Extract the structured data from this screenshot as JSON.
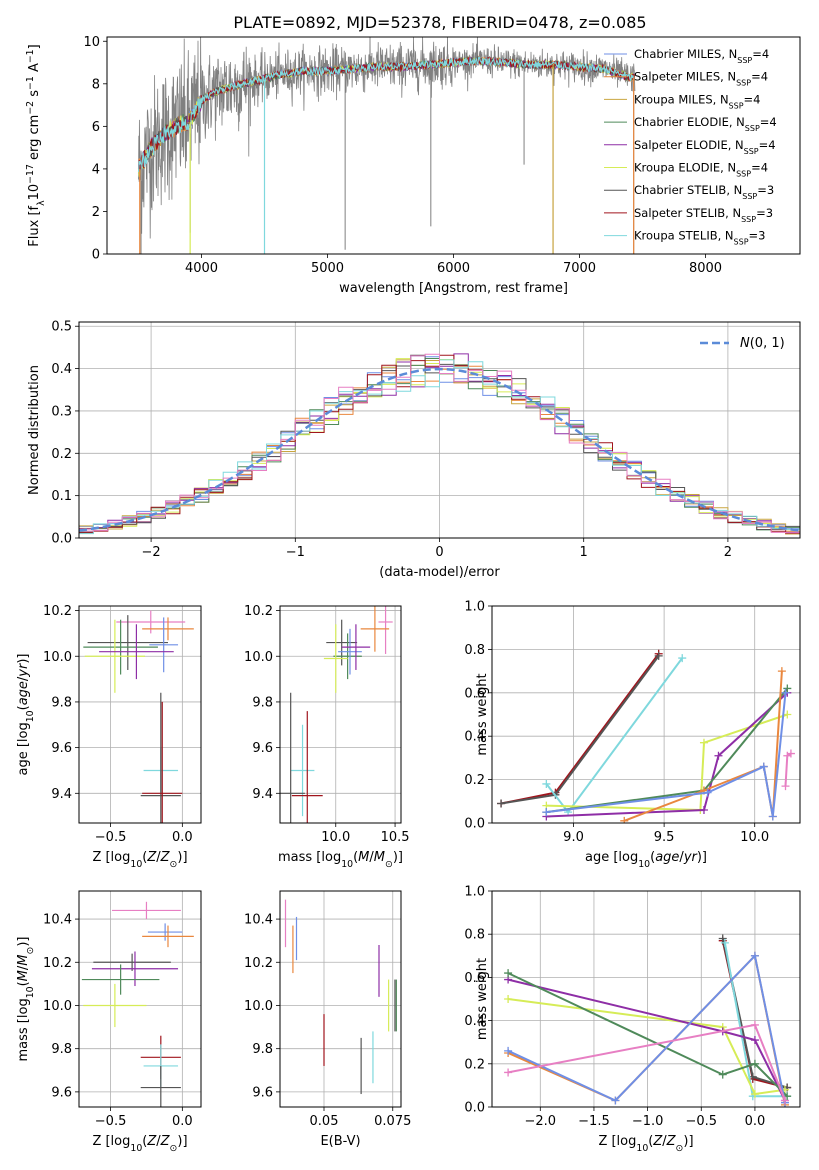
{
  "figure_title": "PLATE=0892, MJD=52378, FIBERID=0478, z=0.085",
  "colors": {
    "Chabrier MILES": "#6f8fe6",
    "Salpeter MILES": "#e9873e",
    "Kroupa MILES": "#c9a641",
    "Chabrier ELODIE": "#4f8a5a",
    "Salpeter ELODIE": "#8e2ea6",
    "Kroupa ELODIE": "#d6ec57",
    "Chabrier STELIB": "#555555",
    "Salpeter STELIB": "#a0151d",
    "Kroupa STELIB": "#7fd8dd",
    "pink": "#e77fc3",
    "data_gray": "#808080",
    "gauss": "#5b8bd8"
  },
  "chart_data": [
    {
      "id": "spectrum",
      "type": "line",
      "title": "PLATE=0892, MJD=52378, FIBERID=0478, z=0.085",
      "xlabel": "wavelength [Angstrom, rest frame]",
      "ylabel": "Flux [f_λ 10^-17 erg cm^-2 s^-1 A^-1]",
      "xlim": [
        3250,
        8750
      ],
      "ylim": [
        0,
        10.2
      ],
      "xticks": [
        4000,
        5000,
        6000,
        7000,
        8000
      ],
      "yticks": [
        0,
        2,
        4,
        6,
        8,
        10
      ],
      "grid": false,
      "legend_position": "upper-right",
      "legend": [
        {
          "name": "Chabrier MILES, N_SSP=4",
          "label_main": "Chabrier MILES, N",
          "label_sub": "SSP",
          "label_tail": "=4",
          "color": "#6f8fe6"
        },
        {
          "name": "Salpeter MILES, N_SSP=4",
          "label_main": "Salpeter MILES, N",
          "label_sub": "SSP",
          "label_tail": "=4",
          "color": "#e9873e"
        },
        {
          "name": "Kroupa MILES, N_SSP=4",
          "label_main": "Kroupa MILES, N",
          "label_sub": "SSP",
          "label_tail": "=4",
          "color": "#c9a641"
        },
        {
          "name": "Chabrier ELODIE, N_SSP=4",
          "label_main": "Chabrier ELODIE, N",
          "label_sub": "SSP",
          "label_tail": "=4",
          "color": "#4f8a5a"
        },
        {
          "name": "Salpeter ELODIE, N_SSP=4",
          "label_main": "Salpeter ELODIE, N",
          "label_sub": "SSP",
          "label_tail": "=4",
          "color": "#8e2ea6"
        },
        {
          "name": "Kroupa ELODIE, N_SSP=4",
          "label_main": "Kroupa ELODIE, N",
          "label_sub": "SSP",
          "label_tail": "=4",
          "color": "#d6ec57"
        },
        {
          "name": "Chabrier STELIB, N_SSP=3",
          "label_main": "Chabrier STELIB, N",
          "label_sub": "SSP",
          "label_tail": "=3",
          "color": "#555555"
        },
        {
          "name": "Salpeter STELIB, N_SSP=3",
          "label_main": "Salpeter STELIB, N",
          "label_sub": "SSP",
          "label_tail": "=3",
          "color": "#a0151d"
        },
        {
          "name": "Kroupa STELIB, N_SSP=3",
          "label_main": "Kroupa STELIB, N",
          "label_sub": "SSP",
          "label_tail": "=3",
          "color": "#7fd8dd"
        }
      ],
      "continuum": {
        "x": [
          3500,
          3600,
          3700,
          3800,
          3900,
          4000,
          4100,
          4200,
          4400,
          4600,
          4800,
          5000,
          5200,
          5400,
          5600,
          5800,
          6000,
          6200,
          6400,
          6600,
          6800,
          7000,
          7200,
          7300,
          7400
        ],
        "y": [
          4.0,
          5.0,
          5.6,
          6.0,
          6.2,
          7.2,
          7.6,
          7.8,
          8.1,
          8.4,
          8.6,
          8.6,
          8.7,
          8.8,
          8.8,
          8.9,
          9.0,
          9.1,
          9.0,
          8.9,
          8.9,
          8.8,
          8.7,
          8.5,
          8.3
        ]
      },
      "data_range": [
        3500,
        7440
      ],
      "dips": [
        {
          "x": 3520,
          "y": 0
        },
        {
          "x": 3910,
          "y": 1.0
        },
        {
          "x": 4500,
          "y": 0
        },
        {
          "x": 5140,
          "y": 0.2
        },
        {
          "x": 5820,
          "y": 1.3
        },
        {
          "x": 6560,
          "y": 4.2
        },
        {
          "x": 6790,
          "y": 0
        },
        {
          "x": 7430,
          "y": 0
        }
      ]
    },
    {
      "id": "residuals",
      "type": "histogram",
      "xlabel": "(data-model)/error",
      "ylabel": "Normed distribution",
      "xlim": [
        -2.5,
        2.5
      ],
      "ylim": [
        0,
        0.51
      ],
      "xticks": [
        -2,
        -1,
        0,
        1,
        2
      ],
      "yticks": [
        0.0,
        0.1,
        0.2,
        0.3,
        0.4,
        0.5
      ],
      "grid": true,
      "bin_width": 0.1,
      "legend_position": "upper-right",
      "gauss_label": "N(0,1)"
    },
    {
      "id": "age_vs_Z",
      "type": "errorbar",
      "xlabel": "Z [log10(Z/Z_sun)]",
      "ylabel": "age [log10(age/yr)]",
      "xlim": [
        -0.72,
        0.13
      ],
      "ylim": [
        9.27,
        10.22
      ],
      "xticks": [
        -0.5,
        0.0
      ],
      "yticks": [
        9.4,
        9.6,
        9.8,
        10.0,
        10.2
      ],
      "grid": true,
      "points": [
        {
          "c": "pink",
          "x": -0.22,
          "ex": 0.24,
          "y": 10.15,
          "ey": 0.05
        },
        {
          "c": "Salpeter MILES",
          "x": -0.1,
          "ex": 0.18,
          "y": 10.12,
          "ey": 0.05
        },
        {
          "c": "Chabrier STELIB",
          "x": -0.38,
          "ex": 0.28,
          "y": 10.06,
          "ey": 0.12
        },
        {
          "c": "Chabrier ELODIE",
          "x": -0.43,
          "ex": 0.26,
          "y": 10.04,
          "ey": 0.12
        },
        {
          "c": "Chabrier MILES",
          "x": -0.13,
          "ex": 0.1,
          "y": 10.05,
          "ey": 0.12
        },
        {
          "c": "Kroupa ELODIE",
          "x": -0.47,
          "ex": 0.21,
          "y": 10.0,
          "ey": 0.16
        },
        {
          "c": "Salpeter ELODIE",
          "x": -0.32,
          "ex": 0.26,
          "y": 10.02,
          "ey": 0.12
        },
        {
          "c": "Kroupa STELIB",
          "x": -0.15,
          "ex": 0.12,
          "y": 9.5,
          "ey": 0.1
        },
        {
          "c": "Chabrier STELIB",
          "x": -0.15,
          "ex": 0.14,
          "y": 9.39,
          "ey": 0.45
        },
        {
          "c": "Salpeter STELIB",
          "x": -0.14,
          "ex": 0.14,
          "y": 9.4,
          "ey": 0.4
        }
      ]
    },
    {
      "id": "age_vs_mass",
      "type": "errorbar",
      "xlabel": "mass [log10(M/M_sun)]",
      "ylabel": "",
      "xlim": [
        9.53,
        10.55
      ],
      "ylim": [
        9.27,
        10.22
      ],
      "xticks": [
        10.0,
        10.5
      ],
      "yticks": [
        9.4,
        9.6,
        9.8,
        10.0,
        10.2
      ],
      "grid": true,
      "points": [
        {
          "c": "pink",
          "x": 10.42,
          "ex": 0.06,
          "y": 10.15,
          "ey": 0.14
        },
        {
          "c": "Salpeter MILES",
          "x": 10.33,
          "ex": 0.12,
          "y": 10.12,
          "ey": 0.1
        },
        {
          "c": "Chabrier STELIB",
          "x": 10.05,
          "ex": 0.13,
          "y": 10.06,
          "ey": 0.1
        },
        {
          "c": "Chabrier ELODIE",
          "x": 10.1,
          "ex": 0.12,
          "y": 10.0,
          "ey": 0.1
        },
        {
          "c": "Chabrier MILES",
          "x": 10.12,
          "ex": 0.1,
          "y": 10.02,
          "ey": 0.1
        },
        {
          "c": "Kroupa ELODIE",
          "x": 10.0,
          "ex": 0.1,
          "y": 9.99,
          "ey": 0.15
        },
        {
          "c": "Salpeter ELODIE",
          "x": 10.17,
          "ex": 0.12,
          "y": 10.04,
          "ey": 0.1
        },
        {
          "c": "Kroupa STELIB",
          "x": 9.72,
          "ex": 0.1,
          "y": 9.5,
          "ey": 0.2
        },
        {
          "c": "Chabrier STELIB",
          "x": 9.62,
          "ex": 0.12,
          "y": 9.4,
          "ey": 0.44
        },
        {
          "c": "Salpeter STELIB",
          "x": 9.76,
          "ex": 0.13,
          "y": 9.39,
          "ey": 0.37
        }
      ]
    },
    {
      "id": "massweight_vs_age",
      "type": "line",
      "xlabel": "age [log10(age/yr)]",
      "ylabel": "mass weight",
      "xlim": [
        8.55,
        10.25
      ],
      "ylim": [
        0,
        1.0
      ],
      "xticks": [
        9.0,
        9.5,
        10.0
      ],
      "yticks": [
        0.0,
        0.2,
        0.4,
        0.6,
        0.8,
        1.0
      ],
      "grid": true,
      "series": [
        {
          "c": "Salpeter STELIB",
          "x": [
            8.6,
            8.9,
            9.47
          ],
          "y": [
            0.09,
            0.14,
            0.78
          ]
        },
        {
          "c": "Chabrier STELIB",
          "x": [
            8.6,
            8.9,
            9.47
          ],
          "y": [
            0.09,
            0.13,
            0.77
          ]
        },
        {
          "c": "Kroupa STELIB",
          "x": [
            8.85,
            8.97,
            9.6
          ],
          "y": [
            0.18,
            0.05,
            0.76
          ]
        },
        {
          "c": "Kroupa ELODIE",
          "x": [
            8.85,
            9.7,
            9.72,
            10.18
          ],
          "y": [
            0.08,
            0.06,
            0.37,
            0.5
          ]
        },
        {
          "c": "Salpeter ELODIE",
          "x": [
            8.85,
            9.72,
            9.8,
            10.18
          ],
          "y": [
            0.03,
            0.06,
            0.31,
            0.6
          ]
        },
        {
          "c": "Chabrier ELODIE",
          "x": [
            8.85,
            9.72,
            10.18
          ],
          "y": [
            0.05,
            0.15,
            0.62
          ]
        },
        {
          "c": "Salpeter MILES",
          "x": [
            9.28,
            9.72,
            10.05,
            10.1,
            10.15
          ],
          "y": [
            0.01,
            0.15,
            0.26,
            0.03,
            0.7
          ]
        },
        {
          "c": "Chabrier MILES",
          "x": [
            8.85,
            9.74,
            10.05,
            10.1,
            10.17
          ],
          "y": [
            0.05,
            0.14,
            0.26,
            0.03,
            0.6
          ]
        },
        {
          "c": "pink",
          "x": [
            10.17,
            10.18,
            10.2
          ],
          "y": [
            0.17,
            0.31,
            0.32
          ]
        }
      ]
    },
    {
      "id": "mass_vs_Z",
      "type": "errorbar",
      "xlabel": "Z [log10(Z/Z_sun)]",
      "ylabel": "mass [log10(M/M_sun)]",
      "xlim": [
        -0.72,
        0.13
      ],
      "ylim": [
        9.53,
        10.53
      ],
      "xticks": [
        -0.5,
        0.0
      ],
      "yticks": [
        9.6,
        9.8,
        10.0,
        10.2,
        10.4
      ],
      "grid": true,
      "points": [
        {
          "c": "pink",
          "x": -0.25,
          "ex": 0.24,
          "y": 10.44,
          "ey": 0.04
        },
        {
          "c": "Chabrier MILES",
          "x": -0.12,
          "ex": 0.12,
          "y": 10.34,
          "ey": 0.04
        },
        {
          "c": "Salpeter MILES",
          "x": -0.1,
          "ex": 0.18,
          "y": 10.32,
          "ey": 0.05
        },
        {
          "c": "Chabrier STELIB",
          "x": -0.35,
          "ex": 0.27,
          "y": 10.2,
          "ey": 0.04
        },
        {
          "c": "Salpeter ELODIE",
          "x": -0.33,
          "ex": 0.3,
          "y": 10.17,
          "ey": 0.08
        },
        {
          "c": "Chabrier ELODIE",
          "x": -0.43,
          "ex": 0.27,
          "y": 10.12,
          "ey": 0.07
        },
        {
          "c": "Kroupa ELODIE",
          "x": -0.47,
          "ex": 0.22,
          "y": 10.0,
          "ey": 0.1
        },
        {
          "c": "Salpeter STELIB",
          "x": -0.15,
          "ex": 0.14,
          "y": 9.76,
          "ey": 0.1
        },
        {
          "c": "Kroupa STELIB",
          "x": -0.15,
          "ex": 0.12,
          "y": 9.72,
          "ey": 0.1
        },
        {
          "c": "Chabrier STELIB",
          "x": -0.15,
          "ex": 0.14,
          "y": 9.62,
          "ey": 0.1
        }
      ]
    },
    {
      "id": "mass_vs_EBV",
      "type": "errorbar",
      "xlabel": "E(B-V)",
      "ylabel": "",
      "xlim": [
        0.034,
        0.078
      ],
      "ylim": [
        9.53,
        10.53
      ],
      "xticks": [
        0.05,
        0.075
      ],
      "yticks": [
        9.6,
        9.8,
        10.0,
        10.2,
        10.4
      ],
      "grid": true,
      "points": [
        {
          "c": "pink",
          "x": 0.036,
          "ex": 0,
          "y": 10.38,
          "ey": 0.11
        },
        {
          "c": "Chabrier MILES",
          "x": 0.04,
          "ex": 0,
          "y": 10.31,
          "ey": 0.1
        },
        {
          "c": "Salpeter MILES",
          "x": 0.0387,
          "ex": 0,
          "y": 10.26,
          "ey": 0.11
        },
        {
          "c": "Salpeter ELODIE",
          "x": 0.07,
          "ex": 0,
          "y": 10.16,
          "ey": 0.12
        },
        {
          "c": "Kroupa ELODIE",
          "x": 0.0735,
          "ex": 0,
          "y": 10.0,
          "ey": 0.12
        },
        {
          "c": "Chabrier ELODIE",
          "x": 0.0763,
          "ex": 0,
          "y": 10.0,
          "ey": 0.12
        },
        {
          "c": "Chabrier STELIB",
          "x": 0.0758,
          "ex": 0,
          "y": 10.0,
          "ey": 0.12
        },
        {
          "c": "Salpeter STELIB",
          "x": 0.05,
          "ex": 0,
          "y": 9.84,
          "ey": 0.12
        },
        {
          "c": "Kroupa STELIB",
          "x": 0.0678,
          "ex": 0,
          "y": 9.76,
          "ey": 0.12
        },
        {
          "c": "Chabrier STELIB",
          "x": 0.0635,
          "ex": 0,
          "y": 9.72,
          "ey": 0.13
        }
      ]
    },
    {
      "id": "massweight_vs_Z",
      "type": "line",
      "xlabel": "Z [log10(Z/Z_sun)]",
      "ylabel": "mass weight",
      "xlim": [
        -2.45,
        0.42
      ],
      "ylim": [
        0,
        1.0
      ],
      "xticks": [
        -2.0,
        -1.5,
        -1.0,
        -0.5,
        0.0
      ],
      "yticks": [
        0.0,
        0.2,
        0.4,
        0.6,
        0.8,
        1.0
      ],
      "grid": true,
      "series": [
        {
          "c": "Salpeter STELIB",
          "x": [
            -0.3,
            -0.02,
            0.3
          ],
          "y": [
            0.77,
            0.13,
            0.09
          ]
        },
        {
          "c": "Chabrier STELIB",
          "x": [
            -0.3,
            -0.02,
            0.3
          ],
          "y": [
            0.78,
            0.14,
            0.09
          ]
        },
        {
          "c": "Kroupa STELIB",
          "x": [
            -0.28,
            -0.02,
            0.3
          ],
          "y": [
            0.76,
            0.05,
            0.05
          ]
        },
        {
          "c": "Kroupa ELODIE",
          "x": [
            -2.3,
            -0.3,
            0.0,
            0.28
          ],
          "y": [
            0.5,
            0.37,
            0.06,
            0.08
          ]
        },
        {
          "c": "Salpeter ELODIE",
          "x": [
            -2.3,
            -0.3,
            0.0,
            0.28
          ],
          "y": [
            0.59,
            0.35,
            0.31,
            0.03
          ]
        },
        {
          "c": "Chabrier ELODIE",
          "x": [
            -2.3,
            -0.3,
            0.0,
            0.3
          ],
          "y": [
            0.62,
            0.15,
            0.2,
            0.05
          ]
        },
        {
          "c": "Salpeter MILES",
          "x": [
            -2.3,
            -1.3,
            0.0,
            0.28
          ],
          "y": [
            0.25,
            0.03,
            0.7,
            0.01
          ]
        },
        {
          "c": "Chabrier MILES",
          "x": [
            -2.3,
            -1.3,
            0.0,
            0.28
          ],
          "y": [
            0.26,
            0.03,
            0.7,
            0.02
          ]
        },
        {
          "c": "pink",
          "x": [
            -2.3,
            0.0,
            0.28
          ],
          "y": [
            0.16,
            0.38,
            0.03
          ]
        }
      ]
    }
  ]
}
